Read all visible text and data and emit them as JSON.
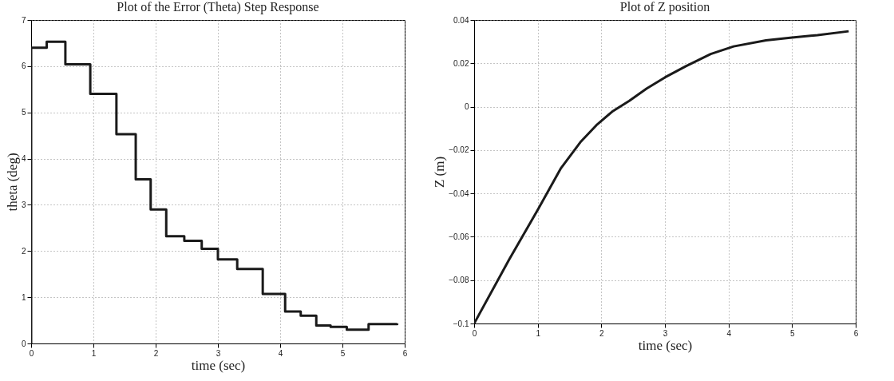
{
  "chart_data": [
    {
      "type": "step",
      "title": "Plot of the Error (Theta) Step Response",
      "xlabel": "time (sec)",
      "ylabel": "theta (deg)",
      "x": [
        0,
        0,
        0.25,
        0.55,
        0.95,
        1.37,
        1.68,
        1.92,
        2.17,
        2.46,
        2.74,
        3.0,
        3.31,
        3.72,
        4.08,
        4.33,
        4.58,
        4.81,
        5.07,
        5.42,
        5.88
      ],
      "series": [
        {
          "color": "#1a1a1a",
          "values": [
            0,
            6.4,
            6.53,
            6.04,
            5.4,
            4.53,
            3.55,
            2.9,
            2.32,
            2.22,
            2.05,
            1.82,
            1.61,
            1.07,
            0.69,
            0.6,
            0.39,
            0.36,
            0.3,
            0.42,
            0.43
          ]
        }
      ],
      "xlim": [
        0,
        6
      ],
      "xticks": [
        0,
        1,
        2,
        3,
        4,
        5,
        6
      ],
      "ylim": [
        0,
        7
      ],
      "yticks": [
        0,
        1,
        2,
        3,
        4,
        5,
        6,
        7
      ],
      "grid": true
    },
    {
      "type": "line",
      "title": "Plot of Z position",
      "xlabel": "time (sec)",
      "ylabel": "Z (m)",
      "x": [
        0,
        0.55,
        1,
        1.36,
        1.67,
        1.92,
        2.17,
        2.44,
        2.71,
        3.0,
        3.33,
        3.72,
        4.08,
        4.59,
        5.0,
        5.4,
        5.89
      ],
      "series": [
        {
          "color": "#1a1a1a",
          "values": [
            -0.1,
            -0.0705,
            -0.0476,
            -0.0286,
            -0.0164,
            -0.0086,
            -0.0023,
            0.0027,
            0.0083,
            0.0135,
            0.0187,
            0.0243,
            0.0278,
            0.0306,
            0.0319,
            0.033,
            0.0348
          ]
        }
      ],
      "xlim": [
        0,
        6
      ],
      "xticks": [
        0,
        1,
        2,
        3,
        4,
        5,
        6
      ],
      "ylim": [
        -0.1,
        0.04
      ],
      "yticks": [
        {
          "value": -0.1,
          "label": "−0.1"
        },
        {
          "value": -0.08,
          "label": "−0.08"
        },
        {
          "value": -0.06,
          "label": "−0.06"
        },
        {
          "value": -0.04,
          "label": "−0.04"
        },
        {
          "value": -0.02,
          "label": "−0.02"
        },
        0,
        0.02,
        0.04
      ],
      "grid": true
    }
  ]
}
